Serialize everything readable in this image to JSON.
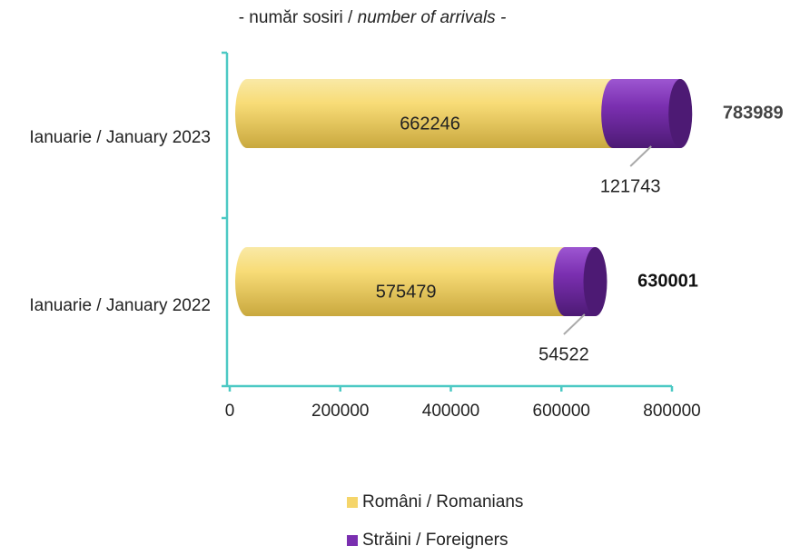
{
  "chart_data": {
    "type": "bar",
    "orientation": "horizontal",
    "stacked": true,
    "title": {
      "ro": "- număr sosiri / ",
      "en": "number of arrivals -"
    },
    "categories": [
      "Ianuarie / January 2023",
      "Ianuarie / January 2022"
    ],
    "series": [
      {
        "name": "Români / Romanians",
        "color": "#f5d56a",
        "values": [
          662246,
          575479
        ]
      },
      {
        "name": "Străini / Foreigners",
        "color": "#7a2fb0",
        "values": [
          121743,
          54522
        ]
      }
    ],
    "totals": [
      783989,
      630001
    ],
    "xlim": [
      0,
      800000
    ],
    "xticks": [
      0,
      200000,
      400000,
      600000,
      800000
    ],
    "legend": "bottom"
  }
}
